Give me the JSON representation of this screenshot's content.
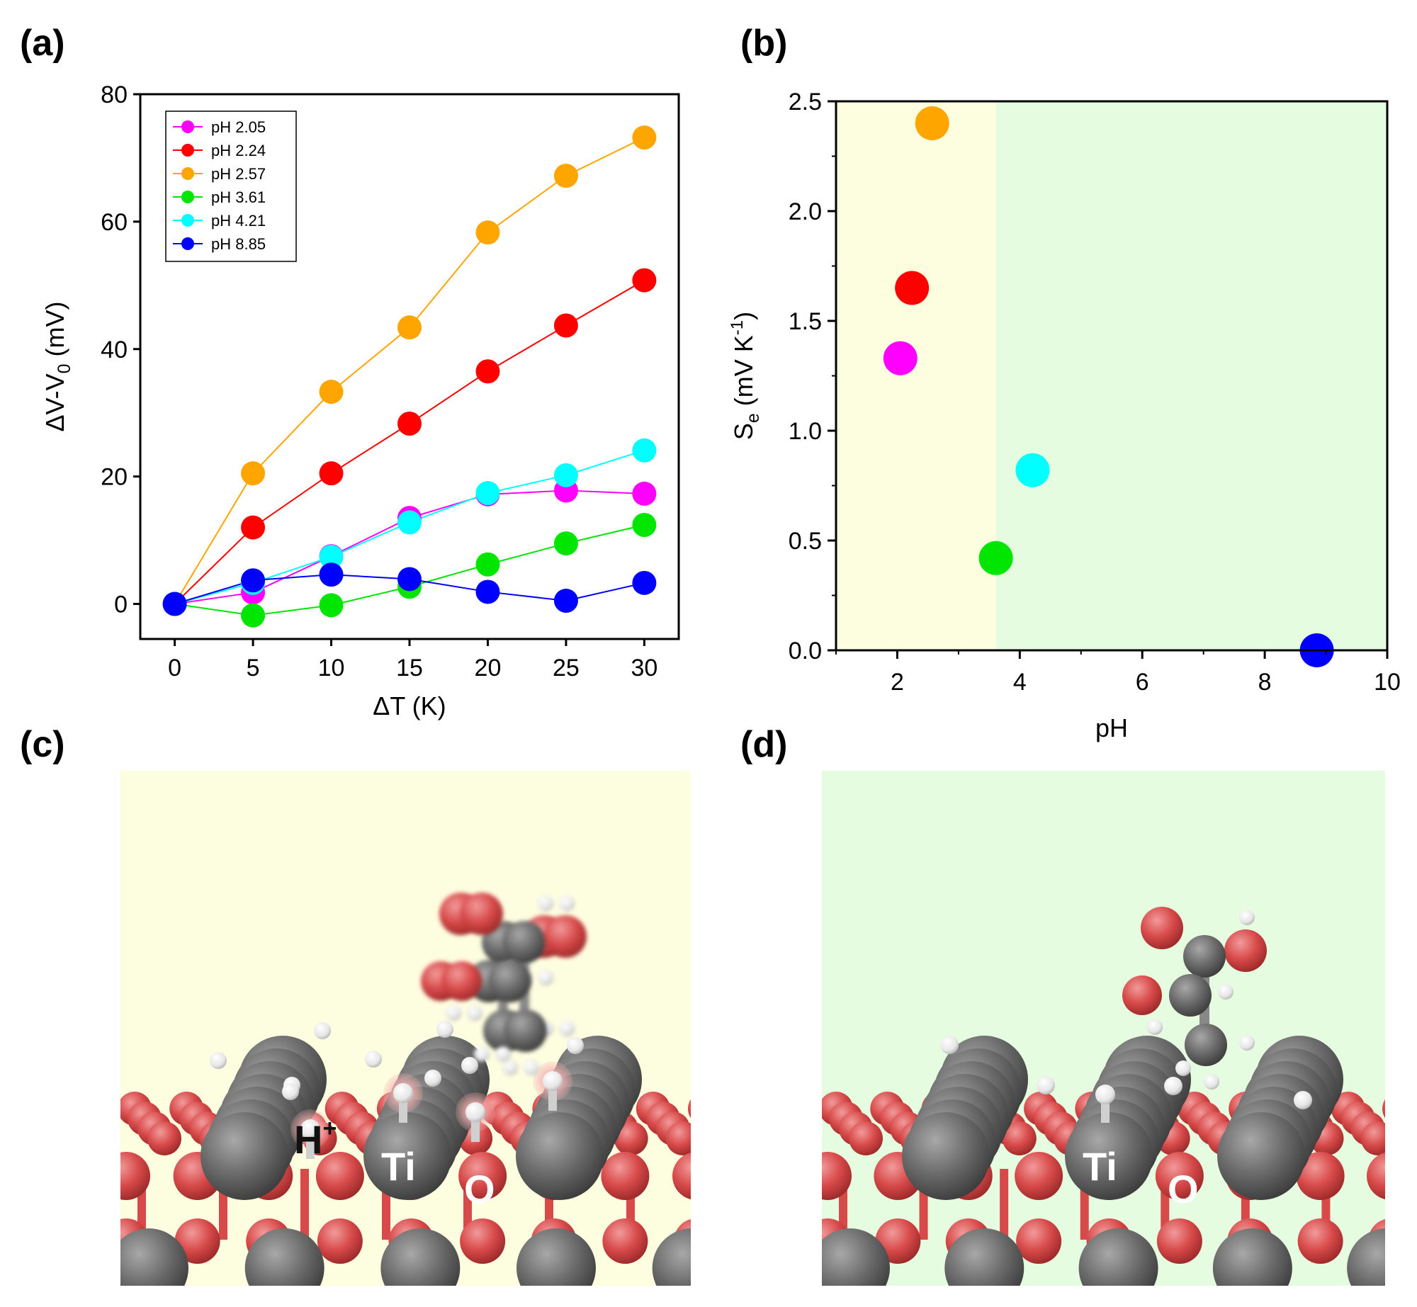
{
  "panels": {
    "a": {
      "label": "(a)"
    },
    "b": {
      "label": "(b)"
    },
    "c": {
      "label": "(c)",
      "atom_labels": {
        "proton": "H",
        "proton_charge": "+",
        "titanium": "Ti",
        "oxygen": "O"
      }
    },
    "d": {
      "label": "(d)",
      "atom_labels": {
        "titanium": "Ti",
        "oxygen": "O"
      }
    }
  },
  "colors": {
    "acidic_region": "#fdfde0",
    "neutral_region": "#e6fce0",
    "ti_atom": "#6b6b6b",
    "o_atom": "#d84a4a",
    "h_atom": "#eeeeee",
    "proton_glow": "#f4a6a6"
  },
  "chart_data": [
    {
      "type": "line",
      "panel": "a",
      "title": "",
      "xlabel_prefix": "Δ",
      "xlabel_rest": "T (K)",
      "ylabel_prefix": "ΔV-V",
      "ylabel_sub": "0",
      "ylabel_suffix": " (mV)",
      "x": [
        0,
        5,
        10,
        15,
        20,
        25,
        30
      ],
      "xlim": [
        -2.2,
        32.2
      ],
      "ylim": [
        -5.5,
        80
      ],
      "xticks": [
        0,
        5,
        10,
        15,
        20,
        25,
        30
      ],
      "yticks": [
        0,
        20,
        40,
        60,
        80
      ],
      "legend_position": "top-left",
      "series": [
        {
          "name": "pH 2.05",
          "color": "#ff00ff",
          "values": [
            0,
            1.8,
            7.5,
            13.5,
            17.2,
            17.8,
            17.3
          ]
        },
        {
          "name": "pH 2.24",
          "color": "#ff0000",
          "values": [
            0,
            12.0,
            20.5,
            28.3,
            36.5,
            43.7,
            50.8
          ]
        },
        {
          "name": "pH 2.57",
          "color": "#ffa500",
          "values": [
            0,
            20.5,
            33.3,
            43.4,
            58.3,
            67.2,
            73.2
          ]
        },
        {
          "name": "pH 3.61",
          "color": "#00e600",
          "values": [
            0,
            -1.8,
            -0.2,
            2.7,
            6.2,
            9.5,
            12.4
          ]
        },
        {
          "name": "pH 4.21",
          "color": "#00ffff",
          "values": [
            0,
            3.3,
            7.4,
            12.8,
            17.4,
            20.2,
            24.1
          ]
        },
        {
          "name": "pH 8.85",
          "color": "#0000ff",
          "values": [
            0,
            3.7,
            4.6,
            3.9,
            1.9,
            0.5,
            3.3
          ]
        }
      ]
    },
    {
      "type": "scatter",
      "panel": "b",
      "title": "",
      "xlabel": "pH",
      "ylabel_main": "S",
      "ylabel_sub": "e",
      "ylabel_unit_open": " (mV K",
      "ylabel_sup": "-1",
      "ylabel_unit_close": ")",
      "xlim": [
        1,
        10
      ],
      "ylim": [
        0,
        2.5
      ],
      "xticks": [
        2,
        4,
        6,
        8,
        10
      ],
      "yticks": [
        "0.0",
        "0.5",
        "1.0",
        "1.5",
        "2.0",
        "2.5"
      ],
      "region_boundary_pH": 3.61,
      "points": [
        {
          "x": 2.05,
          "y": 1.33,
          "color": "#ff00ff"
        },
        {
          "x": 2.24,
          "y": 1.65,
          "color": "#ff0000"
        },
        {
          "x": 2.57,
          "y": 2.4,
          "color": "#ffa500"
        },
        {
          "x": 3.61,
          "y": 0.42,
          "color": "#00e600"
        },
        {
          "x": 4.21,
          "y": 0.82,
          "color": "#00ffff"
        },
        {
          "x": 8.85,
          "y": 0.0,
          "color": "#0000ff"
        }
      ]
    }
  ]
}
